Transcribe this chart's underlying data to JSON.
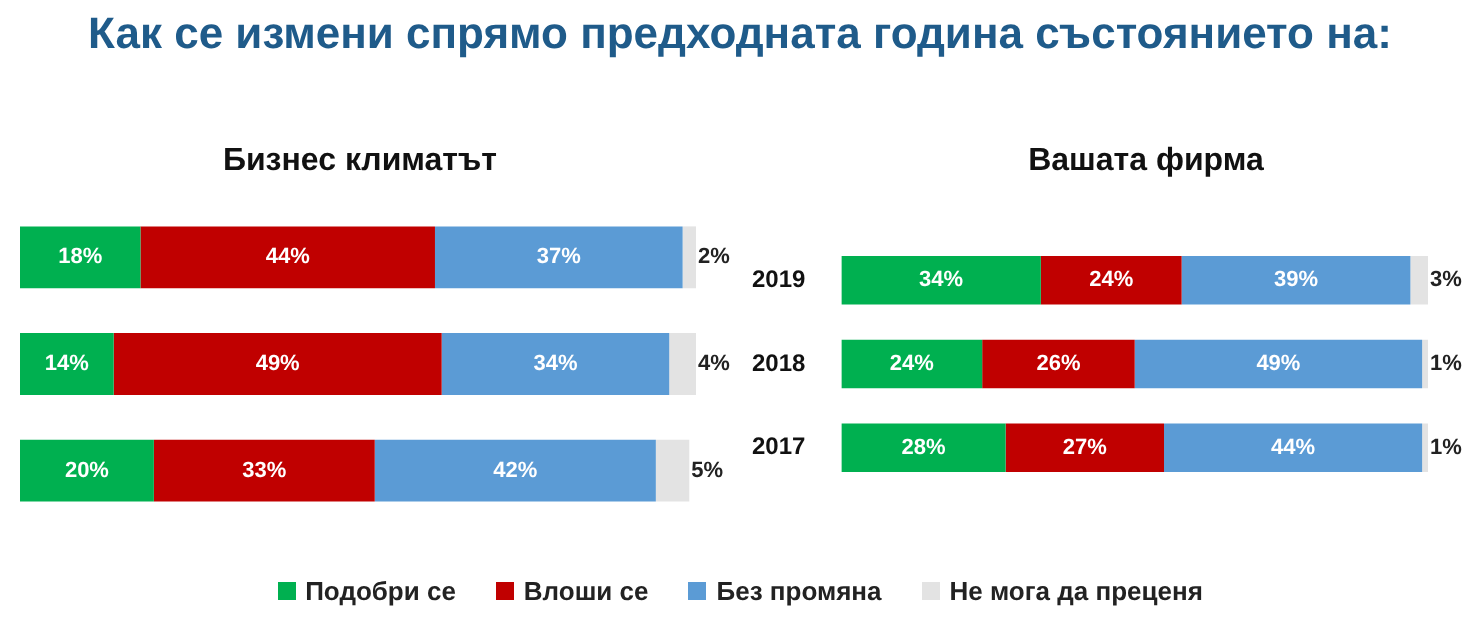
{
  "chart_data": [
    {
      "type": "bar",
      "orientation": "horizontal",
      "stacked": true,
      "title": "Как се измени спрямо предходната година състоянието на:",
      "subtitle": "Бизнес климатът",
      "categories": [
        "2019",
        "2018",
        "2017"
      ],
      "tick_labels": false,
      "legend": "bottom",
      "series": [
        {
          "name": "Подобри се",
          "color": "#00b050",
          "values": [
            18,
            14,
            20
          ],
          "value_labels": [
            "18%",
            "14%",
            "20%"
          ]
        },
        {
          "name": "Влоши се",
          "color": "#c00000",
          "values": [
            44,
            49,
            33
          ],
          "value_labels": [
            "44%",
            "49%",
            "33%"
          ]
        },
        {
          "name": "Без промяна",
          "color": "#5b9bd5",
          "values": [
            37,
            34,
            42
          ],
          "value_labels": [
            "37%",
            "34%",
            "42%"
          ]
        },
        {
          "name": "Не мога да преценя",
          "color": "#e3e3e3",
          "values": [
            2,
            4,
            5
          ],
          "value_labels": [
            "2%",
            "4%",
            "5%"
          ]
        }
      ]
    },
    {
      "type": "bar",
      "orientation": "horizontal",
      "stacked": true,
      "title": "Вашата фирма",
      "categories": [
        "2019",
        "2018",
        "2017"
      ],
      "tick_labels": "y",
      "series": [
        {
          "color": "#00b050",
          "values": [
            34,
            24,
            28
          ],
          "value_labels": [
            "34%",
            "24%",
            "28%"
          ]
        },
        {
          "color": "#c00000",
          "values": [
            24,
            26,
            27
          ],
          "value_labels": [
            "24%",
            "26%",
            "27%"
          ]
        },
        {
          "color": "#5b9bd5",
          "values": [
            39,
            49,
            44
          ],
          "value_labels": [
            "39%",
            "49%",
            "44%"
          ]
        },
        {
          "color": "#e3e3e3",
          "values": [
            3,
            1,
            1
          ],
          "value_labels": [
            "3%",
            "1%",
            "1%"
          ]
        }
      ]
    }
  ]
}
